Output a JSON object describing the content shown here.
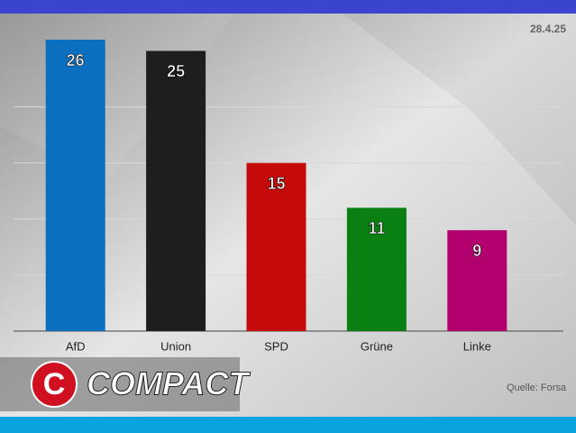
{
  "chart_data": {
    "type": "bar",
    "date": "28.4.25",
    "source": "Quelle: Forsa",
    "logo_mark": "C",
    "logo": "COMPACT",
    "categories": [
      "AfD",
      "Union",
      "SPD",
      "Grüne",
      "Linke"
    ],
    "values": [
      26,
      25,
      15,
      11,
      9
    ],
    "colors": [
      "#0a6fbf",
      "#1e1e1e",
      "#c40a0a",
      "#0a7f12",
      "#b3006f"
    ],
    "ylim": [
      0,
      26
    ],
    "yticks": [
      0,
      5,
      10,
      15,
      20
    ],
    "grid": true
  }
}
